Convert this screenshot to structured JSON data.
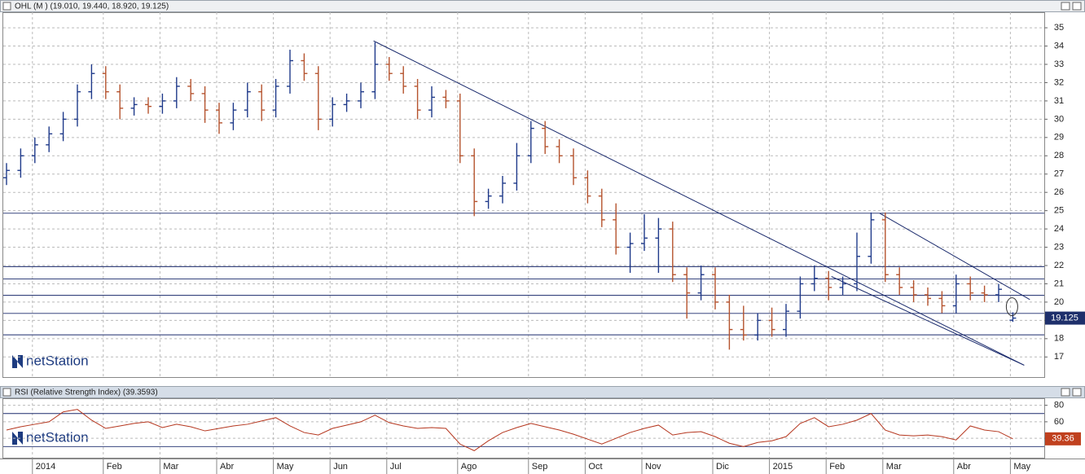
{
  "chart_data": [
    {
      "type": "ohlc",
      "title": "OHL (M ) (19.010, 19.440, 18.920, 19.125)",
      "watermark": "netStation",
      "categories": [
        null,
        null,
        "2014",
        null,
        null,
        null,
        null,
        "Feb",
        null,
        null,
        null,
        "Mar",
        null,
        null,
        null,
        "Abr",
        null,
        null,
        null,
        "May",
        null,
        null,
        null,
        "Jun",
        null,
        null,
        null,
        "Jul",
        null,
        null,
        null,
        null,
        "Ago",
        null,
        null,
        null,
        null,
        "Sep",
        null,
        null,
        null,
        "Oct",
        null,
        null,
        null,
        "Nov",
        null,
        null,
        null,
        null,
        "Dic",
        null,
        null,
        null,
        "2015",
        null,
        null,
        null,
        "Feb",
        null,
        null,
        null,
        "Mar",
        null,
        null,
        null,
        null,
        "Abr",
        null,
        null,
        null,
        "May"
      ],
      "series": [
        {
          "up_color": "#1f3a8a",
          "down_color": "#b5532e",
          "open": [
            26.8,
            27.2,
            28.0,
            28.6,
            29.2,
            30.0,
            31.5,
            32.5,
            31.5,
            30.6,
            30.8,
            30.7,
            31.0,
            31.8,
            31.4,
            30.5,
            29.8,
            30.5,
            31.5,
            30.5,
            31.8,
            33.2,
            32.5,
            30.0,
            30.8,
            31.0,
            31.5,
            33.0,
            32.5,
            31.8,
            30.5,
            31.2,
            31.0,
            28.0,
            25.5,
            25.8,
            26.5,
            28.0,
            29.5,
            28.5,
            28.0,
            26.8,
            25.8,
            24.5,
            23.0,
            23.2,
            23.5,
            24.0,
            21.5,
            20.5,
            21.5,
            20.0,
            18.5,
            18.2,
            19.0,
            18.5,
            19.5,
            21.0,
            21.3,
            20.8,
            21.0,
            22.5,
            24.5,
            21.5,
            20.8,
            20.4,
            20.2,
            19.8,
            21.0,
            20.5,
            20.4,
            19.01
          ],
          "high": [
            27.6,
            28.4,
            29.0,
            29.6,
            30.4,
            31.9,
            33.0,
            32.9,
            31.9,
            31.2,
            31.2,
            31.4,
            32.3,
            32.2,
            31.8,
            30.9,
            30.9,
            32.0,
            31.9,
            32.2,
            33.8,
            33.6,
            32.9,
            31.2,
            31.4,
            32.0,
            34.2,
            33.4,
            32.9,
            32.2,
            31.8,
            31.6,
            31.4,
            28.4,
            26.2,
            26.9,
            28.7,
            29.9,
            29.9,
            28.9,
            28.4,
            27.2,
            26.2,
            25.4,
            23.8,
            24.8,
            24.6,
            24.4,
            21.9,
            22.0,
            21.9,
            20.4,
            19.8,
            19.4,
            19.7,
            19.9,
            21.4,
            22.0,
            21.7,
            21.4,
            23.8,
            24.9,
            24.9,
            21.9,
            21.2,
            20.8,
            20.6,
            21.5,
            21.4,
            20.9,
            21.0,
            19.44
          ],
          "low": [
            26.4,
            26.8,
            27.6,
            28.2,
            28.8,
            29.6,
            31.1,
            31.1,
            30.0,
            30.2,
            30.3,
            30.3,
            30.6,
            31.0,
            29.8,
            29.2,
            29.4,
            30.1,
            29.9,
            30.1,
            31.4,
            32.1,
            29.4,
            29.6,
            30.4,
            30.6,
            31.1,
            32.1,
            31.4,
            30.0,
            30.1,
            30.6,
            27.6,
            24.7,
            25.1,
            25.4,
            26.1,
            27.6,
            28.1,
            27.6,
            26.4,
            25.4,
            24.1,
            22.6,
            21.6,
            22.8,
            21.6,
            21.1,
            19.1,
            20.1,
            19.6,
            17.4,
            17.9,
            17.9,
            18.1,
            18.1,
            19.1,
            20.6,
            20.1,
            20.4,
            20.6,
            22.1,
            21.1,
            20.4,
            20.0,
            19.8,
            19.4,
            19.4,
            20.1,
            20.0,
            20.0,
            18.92
          ],
          "close": [
            27.2,
            28.0,
            28.6,
            29.2,
            30.0,
            31.5,
            32.5,
            31.5,
            30.6,
            30.8,
            30.7,
            31.0,
            31.8,
            31.4,
            30.5,
            29.8,
            30.5,
            31.5,
            30.5,
            31.8,
            33.2,
            32.5,
            30.0,
            30.8,
            31.0,
            31.5,
            33.0,
            32.5,
            31.8,
            30.5,
            31.2,
            31.0,
            28.0,
            25.5,
            25.8,
            26.5,
            28.0,
            29.5,
            28.5,
            28.0,
            26.8,
            25.8,
            24.5,
            23.0,
            23.2,
            23.5,
            24.0,
            21.5,
            20.5,
            21.5,
            20.0,
            18.5,
            18.2,
            19.0,
            18.5,
            19.5,
            21.0,
            21.3,
            20.8,
            21.0,
            22.5,
            24.5,
            21.5,
            20.8,
            20.4,
            20.2,
            19.8,
            21.0,
            20.5,
            20.4,
            20.7,
            19.125
          ]
        }
      ],
      "ylim": [
        15.9,
        35.85
      ],
      "yticks": [
        17,
        18,
        19,
        20,
        21,
        22,
        23,
        24,
        25,
        26,
        27,
        28,
        29,
        30,
        31,
        32,
        33,
        34,
        35
      ],
      "grid": true,
      "hlines": [
        24.86,
        21.94,
        21.27,
        20.37,
        19.38,
        18.21
      ],
      "trendlines": [
        {
          "x": [
            25.9,
            71.8
          ],
          "y": [
            34.28,
            16.55
          ]
        },
        {
          "x": [
            58.2,
            71.8
          ],
          "y": [
            21.4,
            16.55
          ]
        },
        {
          "x": [
            61.6,
            72.2
          ],
          "y": [
            24.86,
            20.14
          ]
        }
      ],
      "line_color": "#1a2a6c"
    },
    {
      "type": "line",
      "title": "RSI (Relative Strength Index) (39.3593)",
      "watermark": "netStation",
      "values": [
        50,
        54,
        57,
        60,
        72,
        75,
        62,
        52,
        55,
        58,
        60,
        53,
        57,
        54,
        49,
        52,
        55,
        57,
        61,
        65,
        55,
        47,
        44,
        52,
        56,
        60,
        68,
        59,
        55,
        52,
        53,
        52,
        33,
        25,
        37,
        47,
        53,
        58,
        54,
        50,
        45,
        39,
        33,
        40,
        47,
        52,
        56,
        44,
        47,
        48,
        42,
        34,
        30,
        35,
        37,
        42,
        58,
        65,
        54,
        57,
        62,
        70,
        50,
        44,
        43,
        44,
        42,
        38,
        55,
        50,
        48,
        39.3593
      ],
      "last_label": "39.36",
      "color": "#b5361e",
      "ylim": [
        16.5,
        88.5
      ],
      "yticks": [
        40,
        60,
        80
      ],
      "levels": [
        70,
        30
      ],
      "grid": true
    }
  ]
}
